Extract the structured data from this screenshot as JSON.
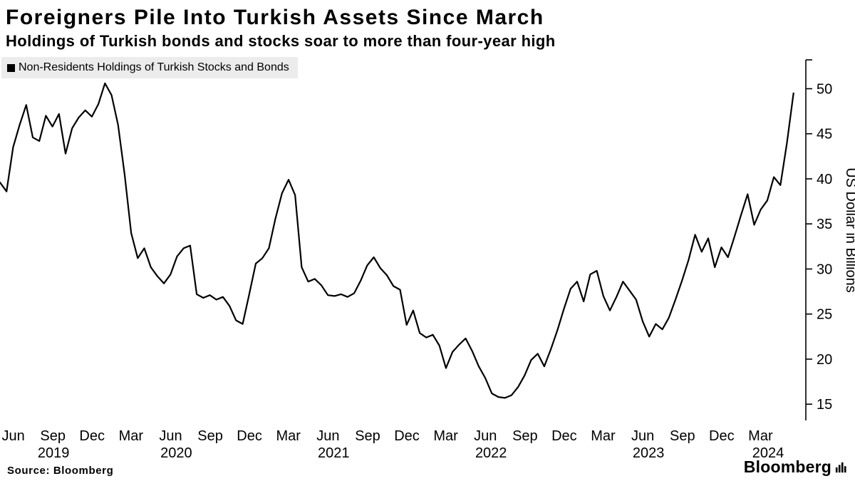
{
  "title": "Foreigners Pile Into Turkish Assets Since March",
  "subtitle": "Holdings of Turkish bonds and stocks soar to more than four-year high",
  "legend": "Non-Residents Holdings of Turkish Stocks and Bonds",
  "source": "Source: Bloomberg",
  "logo_text": "Bloomberg",
  "colors": {
    "line": "#000000",
    "legend_bg": "#ececec",
    "text": "#000000"
  },
  "chart_data": {
    "type": "line",
    "title": "Foreigners Pile Into Turkish Assets Since March",
    "xlabel": "",
    "ylabel": "US Dollar in Billions",
    "ylim": [
      13.2,
      53.2
    ],
    "yticks": [
      15,
      20,
      25,
      30,
      35,
      40,
      45,
      50
    ],
    "grid": false,
    "legend_position": "top-left",
    "x_start": 2019.33,
    "x_step": 0.0416667,
    "x_axis_end": 2024.45,
    "xticks": [
      {
        "t": 2019.414,
        "label": "Jun"
      },
      {
        "t": 2019.666,
        "label": "Sep"
      },
      {
        "t": 2019.915,
        "label": "Dec"
      },
      {
        "t": 2020.162,
        "label": "Mar"
      },
      {
        "t": 2020.414,
        "label": "Jun"
      },
      {
        "t": 2020.666,
        "label": "Sep"
      },
      {
        "t": 2020.915,
        "label": "Dec"
      },
      {
        "t": 2021.162,
        "label": "Mar"
      },
      {
        "t": 2021.414,
        "label": "Jun"
      },
      {
        "t": 2021.666,
        "label": "Sep"
      },
      {
        "t": 2021.915,
        "label": "Dec"
      },
      {
        "t": 2022.162,
        "label": "Mar"
      },
      {
        "t": 2022.414,
        "label": "Jun"
      },
      {
        "t": 2022.666,
        "label": "Sep"
      },
      {
        "t": 2022.915,
        "label": "Dec"
      },
      {
        "t": 2023.162,
        "label": "Mar"
      },
      {
        "t": 2023.414,
        "label": "Jun"
      },
      {
        "t": 2023.666,
        "label": "Sep"
      },
      {
        "t": 2023.915,
        "label": "Dec"
      },
      {
        "t": 2024.162,
        "label": "Mar"
      }
    ],
    "year_labels": [
      {
        "t": 2019.67,
        "label": "2019"
      },
      {
        "t": 2020.45,
        "label": "2020"
      },
      {
        "t": 2021.45,
        "label": "2021"
      },
      {
        "t": 2022.45,
        "label": "2022"
      },
      {
        "t": 2023.45,
        "label": "2023"
      },
      {
        "t": 2024.21,
        "label": "2024"
      }
    ],
    "series": [
      {
        "name": "Non-Residents Holdings of Turkish Stocks and Bonds",
        "unit": "USD billions",
        "values": [
          39.6,
          38.6,
          43.5,
          46.0,
          48.2,
          44.6,
          44.2,
          47.0,
          45.8,
          47.2,
          42.8,
          45.6,
          46.8,
          47.6,
          46.9,
          48.3,
          50.6,
          49.3,
          46.0,
          40.5,
          34.0,
          31.2,
          32.3,
          30.2,
          29.2,
          28.4,
          29.4,
          31.4,
          32.3,
          32.6,
          27.2,
          26.8,
          27.1,
          26.6,
          26.9,
          25.9,
          24.3,
          23.9,
          27.2,
          30.6,
          31.2,
          32.3,
          35.6,
          38.4,
          39.9,
          38.2,
          30.2,
          28.6,
          28.9,
          28.2,
          27.1,
          27.0,
          27.2,
          26.9,
          27.3,
          28.7,
          30.4,
          31.3,
          30.1,
          29.3,
          28.1,
          27.7,
          23.8,
          25.4,
          22.9,
          22.4,
          22.7,
          21.5,
          19.0,
          20.8,
          21.6,
          22.3,
          20.9,
          19.2,
          17.9,
          16.2,
          15.8,
          15.7,
          16.0,
          16.9,
          18.2,
          19.9,
          20.6,
          19.2,
          21.1,
          23.2,
          25.6,
          27.8,
          28.6,
          26.4,
          29.4,
          29.8,
          27.0,
          25.4,
          26.9,
          28.6,
          27.6,
          26.6,
          24.2,
          22.5,
          23.9,
          23.3,
          24.6,
          26.6,
          28.7,
          31.0,
          33.8,
          31.9,
          33.4,
          30.2,
          32.4,
          31.3,
          33.6,
          36.0,
          38.3,
          34.9,
          36.6,
          37.6,
          40.2,
          39.3,
          44.0,
          49.5
        ]
      }
    ]
  }
}
